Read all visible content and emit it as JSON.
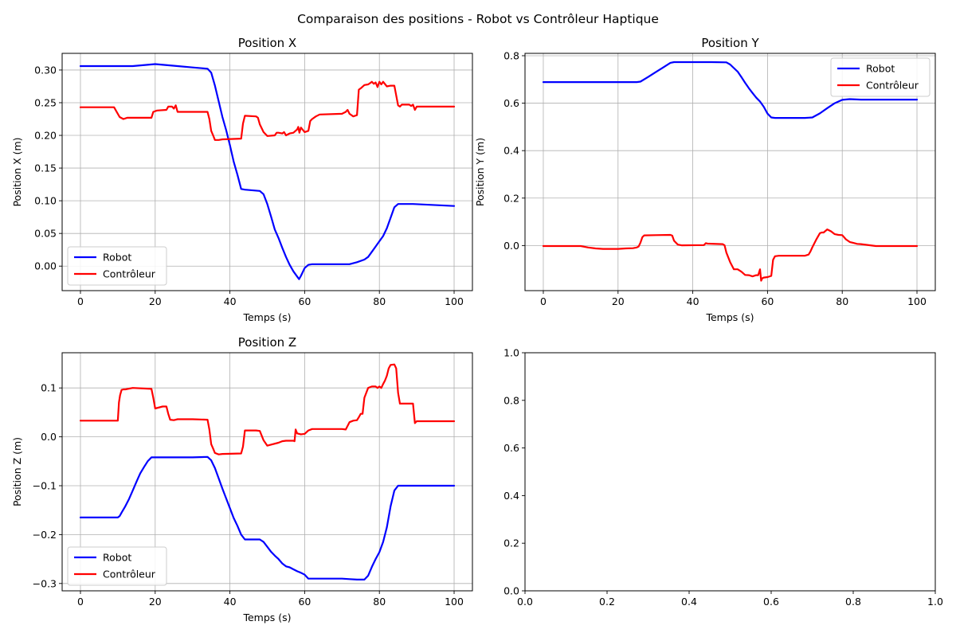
{
  "figure": {
    "suptitle": "Comparaison des positions - Robot vs Contrôleur Haptique"
  },
  "chart_data": [
    {
      "id": "x",
      "type": "line",
      "title": "Position X",
      "xlabel": "Temps (s)",
      "ylabel": "Position X (m)",
      "xlim": [
        -4.9,
        104.9
      ],
      "ylim": [
        -0.0375,
        0.3255
      ],
      "xticks": [
        0,
        20,
        40,
        60,
        80,
        100
      ],
      "xtick_labels": [
        "0",
        "20",
        "40",
        "60",
        "80",
        "100"
      ],
      "yticks": [
        0.0,
        0.05,
        0.1,
        0.15,
        0.2,
        0.25,
        0.3
      ],
      "ytick_labels": [
        "0.00",
        "0.05",
        "0.10",
        "0.15",
        "0.20",
        "0.25",
        "0.30"
      ],
      "grid": true,
      "legend": "lower-left",
      "series": [
        {
          "name": "Robot",
          "color": "#0000ff",
          "x": [
            0,
            10,
            14,
            20,
            26,
            30,
            34,
            35,
            36,
            37,
            38,
            39,
            40,
            41,
            42,
            43,
            44,
            48,
            49,
            50,
            51,
            52,
            53,
            54,
            55,
            56,
            57,
            58,
            58.5,
            59,
            60,
            61,
            62,
            70,
            72,
            74,
            76,
            77,
            78,
            79,
            80,
            81,
            82,
            83,
            84,
            85,
            89,
            100
          ],
          "y": [
            0.306,
            0.306,
            0.306,
            0.309,
            0.306,
            0.304,
            0.302,
            0.296,
            0.276,
            0.252,
            0.228,
            0.208,
            0.185,
            0.16,
            0.14,
            0.118,
            0.117,
            0.115,
            0.11,
            0.095,
            0.076,
            0.056,
            0.043,
            0.028,
            0.014,
            0.002,
            -0.008,
            -0.016,
            -0.02,
            -0.015,
            -0.003,
            0.002,
            0.003,
            0.003,
            0.003,
            0.006,
            0.01,
            0.014,
            0.022,
            0.03,
            0.038,
            0.046,
            0.058,
            0.074,
            0.09,
            0.095,
            0.095,
            0.092
          ]
        },
        {
          "name": "Contrôleur",
          "color": "#ff0000",
          "x": [
            0,
            9,
            9.5,
            10.5,
            11.5,
            12.5,
            14,
            19,
            19.5,
            20.5,
            23,
            23.5,
            24.5,
            25,
            25.5,
            26,
            34,
            34.5,
            35,
            35.5,
            36,
            37,
            38,
            43,
            43.5,
            44,
            47,
            47.5,
            48,
            49,
            50,
            52,
            52.5,
            53,
            54,
            54.5,
            55,
            56,
            57,
            58,
            58.3,
            58.6,
            59,
            60,
            61,
            61.5,
            62,
            63,
            64,
            70,
            71,
            71.5,
            72,
            73,
            74,
            74.5,
            75,
            76,
            77,
            77.5,
            78,
            78.5,
            79,
            79.5,
            80,
            80.5,
            81,
            82,
            83,
            84,
            85,
            85.5,
            86,
            88,
            88.5,
            89,
            89.5,
            90,
            100
          ],
          "y": [
            0.243,
            0.243,
            0.238,
            0.228,
            0.225,
            0.227,
            0.227,
            0.227,
            0.236,
            0.238,
            0.239,
            0.244,
            0.244,
            0.241,
            0.246,
            0.236,
            0.236,
            0.225,
            0.207,
            0.2,
            0.193,
            0.193,
            0.194,
            0.195,
            0.218,
            0.23,
            0.229,
            0.227,
            0.217,
            0.205,
            0.199,
            0.2,
            0.204,
            0.204,
            0.203,
            0.205,
            0.2,
            0.203,
            0.204,
            0.209,
            0.213,
            0.204,
            0.212,
            0.205,
            0.207,
            0.222,
            0.225,
            0.229,
            0.232,
            0.233,
            0.236,
            0.239,
            0.233,
            0.229,
            0.231,
            0.27,
            0.272,
            0.277,
            0.278,
            0.28,
            0.282,
            0.279,
            0.281,
            0.274,
            0.282,
            0.278,
            0.282,
            0.275,
            0.276,
            0.276,
            0.246,
            0.244,
            0.247,
            0.247,
            0.245,
            0.247,
            0.239,
            0.244,
            0.244
          ]
        }
      ]
    },
    {
      "id": "y",
      "type": "line",
      "title": "Position Y",
      "xlabel": "Temps (s)",
      "ylabel": "Position Y (m)",
      "xlim": [
        -4.9,
        104.9
      ],
      "ylim": [
        -0.19,
        0.81
      ],
      "xticks": [
        0,
        20,
        40,
        60,
        80,
        100
      ],
      "xtick_labels": [
        "0",
        "20",
        "40",
        "60",
        "80",
        "100"
      ],
      "yticks": [
        0.0,
        0.2,
        0.4,
        0.6,
        0.8
      ],
      "ytick_labels": [
        "0.0",
        "0.2",
        "0.4",
        "0.6",
        "0.8"
      ],
      "grid": true,
      "legend": "upper-right",
      "series": [
        {
          "name": "Robot",
          "color": "#0000ff",
          "x": [
            0,
            10,
            20,
            25,
            26,
            28,
            30,
            32,
            34,
            35,
            40,
            45,
            49,
            50,
            51,
            52,
            53,
            54,
            55,
            56,
            57,
            58,
            59,
            60,
            61,
            62,
            70,
            72,
            74,
            76,
            78,
            80,
            82,
            85,
            90,
            100
          ],
          "y": [
            0.689,
            0.689,
            0.689,
            0.689,
            0.691,
            0.71,
            0.73,
            0.75,
            0.77,
            0.773,
            0.773,
            0.773,
            0.772,
            0.763,
            0.748,
            0.733,
            0.71,
            0.686,
            0.663,
            0.643,
            0.623,
            0.607,
            0.585,
            0.556,
            0.54,
            0.538,
            0.538,
            0.54,
            0.557,
            0.579,
            0.6,
            0.614,
            0.617,
            0.615,
            0.615,
            0.615
          ]
        },
        {
          "name": "Contrôleur",
          "color": "#ff0000",
          "x": [
            0,
            9,
            10,
            12,
            14,
            16,
            20,
            22,
            24,
            25,
            25.5,
            26,
            26.5,
            27,
            30,
            34,
            34.5,
            35,
            36,
            37,
            43,
            43.5,
            44,
            48,
            48.5,
            49,
            50,
            51,
            52,
            53,
            54,
            55,
            56,
            57,
            57.5,
            58,
            58.3,
            58.6,
            59,
            60,
            61,
            61.5,
            62,
            63,
            70,
            71,
            71.5,
            72,
            73,
            74,
            74.5,
            75,
            76,
            77,
            78,
            79,
            80,
            81,
            82,
            83,
            84,
            85,
            89,
            90,
            100
          ],
          "y": [
            -0.002,
            -0.002,
            -0.002,
            -0.008,
            -0.012,
            -0.014,
            -0.014,
            -0.012,
            -0.011,
            -0.008,
            -0.004,
            0.012,
            0.035,
            0.043,
            0.044,
            0.045,
            0.042,
            0.02,
            0.004,
            0.001,
            0.002,
            0.01,
            0.008,
            0.006,
            0.001,
            -0.03,
            -0.07,
            -0.1,
            -0.1,
            -0.11,
            -0.124,
            -0.125,
            -0.13,
            -0.125,
            -0.125,
            -0.1,
            -0.148,
            -0.138,
            -0.135,
            -0.133,
            -0.128,
            -0.06,
            -0.045,
            -0.043,
            -0.043,
            -0.038,
            -0.025,
            -0.007,
            0.024,
            0.052,
            0.055,
            0.055,
            0.068,
            0.06,
            0.048,
            0.045,
            0.044,
            0.026,
            0.015,
            0.011,
            0.007,
            0.006,
            -0.002,
            -0.002,
            -0.002
          ]
        }
      ]
    },
    {
      "id": "z",
      "type": "line",
      "title": "Position Z",
      "xlabel": "Temps (s)",
      "ylabel": "Position Z (m)",
      "xlim": [
        -4.9,
        104.9
      ],
      "ylim": [
        -0.315,
        0.172
      ],
      "xticks": [
        0,
        20,
        40,
        60,
        80,
        100
      ],
      "xtick_labels": [
        "0",
        "20",
        "40",
        "60",
        "80",
        "100"
      ],
      "yticks": [
        -0.3,
        -0.2,
        -0.1,
        0.0,
        0.1
      ],
      "ytick_labels": [
        "−0.3",
        "−0.2",
        "−0.1",
        "0.0",
        "0.1"
      ],
      "grid": true,
      "legend": "lower-left",
      "series": [
        {
          "name": "Robot",
          "color": "#0000ff",
          "x": [
            0,
            10,
            10.5,
            11,
            12,
            13,
            14,
            15,
            16,
            17,
            18,
            19,
            20,
            25,
            30,
            34,
            35,
            36,
            37,
            38,
            39,
            40,
            41,
            42,
            43,
            44,
            48,
            49,
            50,
            51,
            52,
            53,
            54,
            55,
            56,
            57,
            58,
            59,
            60,
            61,
            62,
            70,
            72,
            74,
            76,
            77,
            78,
            79,
            80,
            81,
            82,
            83,
            84,
            85,
            90,
            100
          ],
          "y": [
            -0.165,
            -0.165,
            -0.162,
            -0.155,
            -0.142,
            -0.127,
            -0.11,
            -0.092,
            -0.075,
            -0.062,
            -0.05,
            -0.042,
            -0.042,
            -0.042,
            -0.042,
            -0.041,
            -0.048,
            -0.064,
            -0.085,
            -0.106,
            -0.126,
            -0.146,
            -0.166,
            -0.182,
            -0.2,
            -0.21,
            -0.21,
            -0.215,
            -0.225,
            -0.235,
            -0.243,
            -0.25,
            -0.259,
            -0.265,
            -0.267,
            -0.271,
            -0.275,
            -0.278,
            -0.282,
            -0.29,
            -0.29,
            -0.29,
            -0.291,
            -0.292,
            -0.292,
            -0.284,
            -0.266,
            -0.25,
            -0.236,
            -0.215,
            -0.185,
            -0.142,
            -0.11,
            -0.1,
            -0.1,
            -0.1
          ]
        },
        {
          "name": "Contrôleur",
          "color": "#ff0000",
          "x": [
            0,
            10,
            10.3,
            10.6,
            11,
            11.5,
            12,
            14,
            19,
            19.5,
            20,
            22,
            23,
            23.5,
            24,
            25,
            26,
            30,
            34,
            34.5,
            35,
            35.5,
            36,
            37,
            38,
            43,
            43.5,
            44,
            47,
            48,
            49,
            50,
            51,
            53,
            54,
            55,
            56,
            57,
            57.3,
            57.6,
            58,
            59,
            60,
            61,
            62,
            70,
            71,
            72,
            73,
            74,
            74.5,
            75,
            75.5,
            76,
            77,
            78,
            79,
            79.5,
            80,
            80.5,
            81,
            81.5,
            82,
            82.5,
            83,
            84,
            84.5,
            85,
            85.5,
            86,
            89,
            89.5,
            90,
            100
          ],
          "y": [
            0.033,
            0.033,
            0.07,
            0.085,
            0.096,
            0.097,
            0.097,
            0.1,
            0.098,
            0.08,
            0.058,
            0.062,
            0.062,
            0.047,
            0.035,
            0.034,
            0.036,
            0.036,
            0.035,
            0.015,
            -0.015,
            -0.024,
            -0.033,
            -0.036,
            -0.035,
            -0.034,
            -0.02,
            0.013,
            0.013,
            0.012,
            -0.007,
            -0.018,
            -0.016,
            -0.012,
            -0.009,
            -0.008,
            -0.008,
            -0.008,
            -0.009,
            0.015,
            0.007,
            0.005,
            0.006,
            0.013,
            0.016,
            0.016,
            0.015,
            0.03,
            0.033,
            0.034,
            0.04,
            0.047,
            0.047,
            0.08,
            0.1,
            0.103,
            0.103,
            0.1,
            0.103,
            0.1,
            0.108,
            0.115,
            0.125,
            0.14,
            0.147,
            0.148,
            0.14,
            0.09,
            0.068,
            0.068,
            0.068,
            0.028,
            0.032,
            0.032
          ]
        }
      ]
    },
    {
      "id": "empty",
      "type": "line",
      "title": "",
      "xlabel": "",
      "ylabel": "",
      "xlim": [
        0,
        1
      ],
      "ylim": [
        0,
        1
      ],
      "xticks": [
        0,
        0.2,
        0.4,
        0.6,
        0.8,
        1.0
      ],
      "xtick_labels": [
        "0.0",
        "0.2",
        "0.4",
        "0.6",
        "0.8",
        "1.0"
      ],
      "yticks": [
        0,
        0.2,
        0.4,
        0.6,
        0.8,
        1.0
      ],
      "ytick_labels": [
        "0.0",
        "0.2",
        "0.4",
        "0.6",
        "0.8",
        "1.0"
      ],
      "grid": false,
      "legend": "none",
      "series": []
    }
  ]
}
